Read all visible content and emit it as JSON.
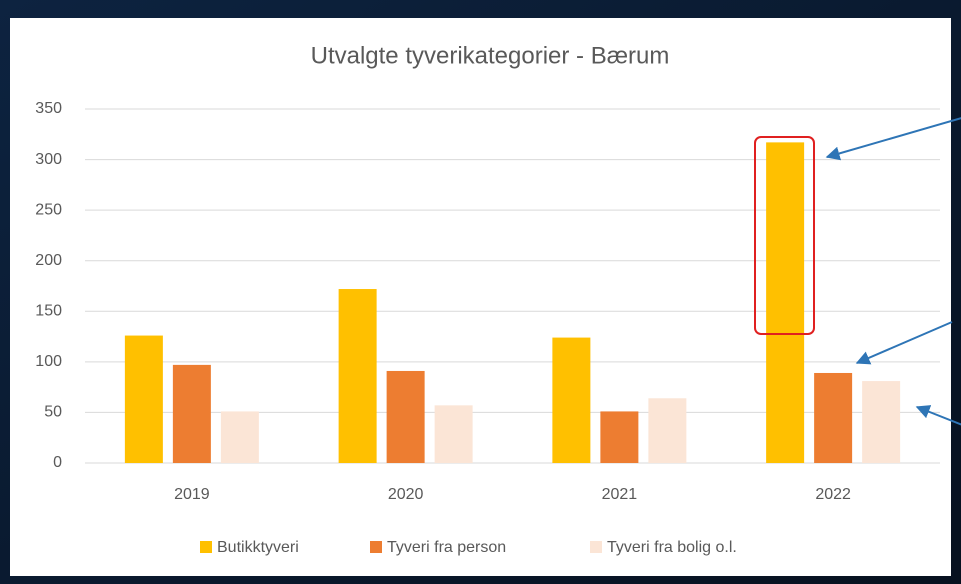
{
  "chart_data": {
    "type": "bar",
    "title": "Utvalgte tyverikategorier - Bærum",
    "categories": [
      "2019",
      "2020",
      "2021",
      "2022"
    ],
    "series": [
      {
        "name": "Butikktyveri",
        "color": "#ffc000",
        "values": [
          126,
          172,
          124,
          317
        ]
      },
      {
        "name": "Tyveri fra person",
        "color": "#ed7d31",
        "values": [
          97,
          91,
          51,
          89
        ]
      },
      {
        "name": "Tyveri fra bolig o.l.",
        "color": "#fbe5d6",
        "values": [
          51,
          57,
          64,
          81
        ]
      }
    ],
    "ylim": [
      0,
      350
    ],
    "yticks": [
      0,
      50,
      100,
      150,
      200,
      250,
      300,
      350
    ],
    "grid": true,
    "legend": "bottom"
  }
}
